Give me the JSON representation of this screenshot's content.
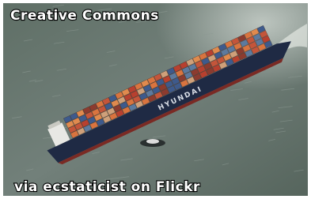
{
  "overlay": {
    "top_text": "Creative Commons",
    "bottom_text": "via ecstaticist on Flickr"
  },
  "ship": {
    "hull_text": "HYUNDAI"
  }
}
